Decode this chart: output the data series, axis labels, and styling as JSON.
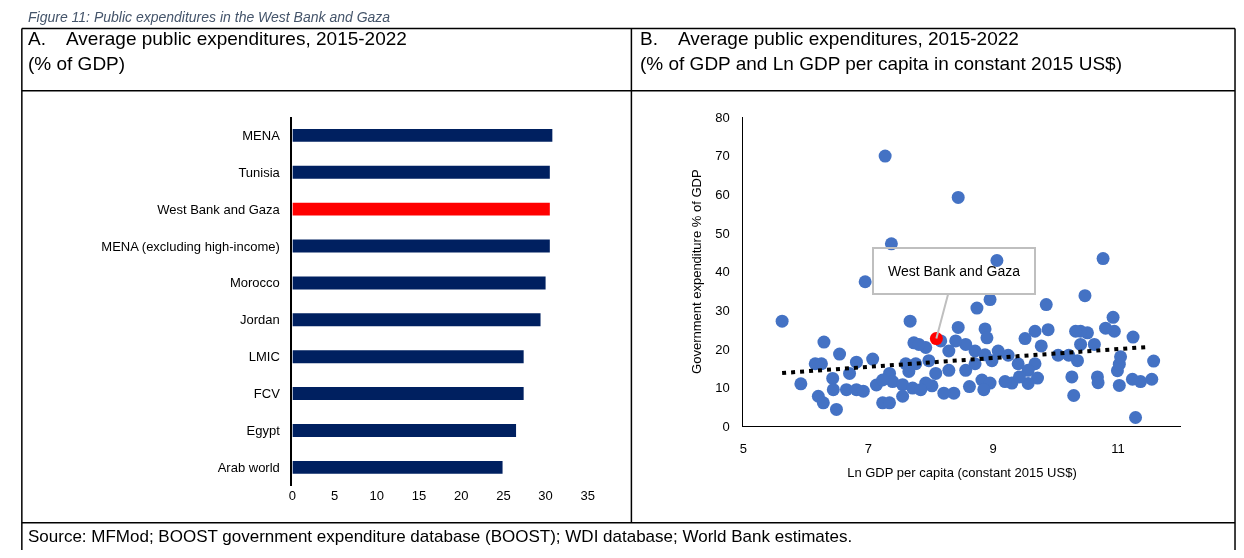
{
  "chart_data": [
    {
      "type": "bar",
      "orientation": "horizontal",
      "title": "A.    Average public expenditures, 2015-2022",
      "subtitle": "(% of GDP)",
      "annotations": [
        "Figure 11: Public expenditures in the West Bank and Gaza"
      ],
      "categories": [
        "MENA",
        "Tunisia",
        "West Bank and Gaza",
        "MENA (excluding high-income)",
        "Morocco",
        "Jordan",
        "LMIC",
        "FCV",
        "Egypt",
        "Arab world"
      ],
      "values": [
        30.8,
        30.5,
        30.5,
        30.5,
        30.0,
        29.4,
        27.4,
        27.4,
        26.5,
        24.9
      ],
      "colors": [
        "#002060",
        "#002060",
        "#ff0000",
        "#002060",
        "#002060",
        "#002060",
        "#002060",
        "#002060",
        "#002060",
        "#002060"
      ],
      "xlim": [
        0,
        35
      ],
      "xticks": [
        0,
        5,
        10,
        15,
        20,
        25,
        30,
        35
      ]
    },
    {
      "type": "scatter",
      "title": "B.    Average public expenditures, 2015-2022",
      "subtitle": "(% of GDP and Ln GDP per capita in constant 2015 US$)",
      "xlabel": "Ln GDP per capita (constant 2015 US$)",
      "ylabel": "Government expenditure % of GDP",
      "annotations": [
        {
          "text": "West Bank and Gaza",
          "x": 8.09,
          "y": 22.7
        },
        "Source: MFMod; BOOST government expenditure database (BOOST); WDI database; World Bank estimates."
      ],
      "marker": "circle",
      "series": [
        {
          "type": "scatter",
          "color": "#4472c4",
          "x": [
            5.62,
            7.27,
            7.37,
            6.95,
            7.67,
            6.29,
            5.92,
            6.15,
            6.25,
            6.54,
            6.43,
            6.2,
            6.28,
            6.49,
            6.44,
            6.65,
            6.81,
            6.92,
            7.07,
            6.81,
            6.7,
            7.13,
            7.23,
            7.34,
            7.34,
            7.39,
            7.23,
            7.55,
            7.55,
            7.71,
            7.6,
            7.65,
            7.76,
            7.73,
            7.92,
            8.02,
            8.44,
            9.06,
            10.76,
            8.95,
            8.74,
            9.85,
            10.47,
            8.44,
            8.87,
            8.9,
            10.92,
            11.24,
            11.57,
            11.54,
            11.36,
            11.23,
            11.28,
            10.29,
            10.26,
            10.67,
            10.68,
            11.02,
            10.99,
            11.02,
            11.04,
            10.94,
            10.8,
            10.51,
            10.4,
            10.32,
            10.62,
            10.4,
            10.35,
            10.21,
            10.04,
            9.88,
            9.67,
            9.51,
            9.77,
            9.67,
            9.56,
            9.71,
            9.56,
            9.3,
            9.19,
            9.4,
            9.08,
            8.98,
            8.87,
            8.71,
            8.56,
            8.4,
            8.29,
            8.29,
            8.56,
            8.71,
            8.82,
            8.95,
            8.85,
            8.62,
            8.37,
            8.21,
            8.08,
            7.92,
            7.84,
            7.97,
            7.81,
            8.16,
            9.24,
            9.42
          ],
          "values": [
            27.2,
            69.9,
            47.2,
            37.4,
            27.2,
            21.8,
            11.0,
            16.2,
            16.2,
            18.7,
            12.4,
            7.8,
            6.1,
            4.4,
            9.5,
            9.5,
            9.5,
            9.1,
            17.4,
            16.6,
            13.7,
            10.7,
            6.1,
            6.1,
            13.7,
            11.6,
            12.0,
            10.8,
            7.8,
            9.9,
            16.2,
            14.2,
            16.2,
            21.6,
            20.4,
            10.5,
            59.2,
            42.9,
            43.4,
            32.8,
            30.6,
            31.5,
            33.8,
            25.6,
            25.2,
            22.9,
            28.2,
            23.1,
            16.9,
            12.2,
            11.6,
            12.2,
            2.3,
            8.0,
            12.8,
            12.8,
            11.3,
            10.6,
            14.4,
            16.1,
            18.0,
            24.6,
            25.4,
            24.2,
            24.6,
            24.6,
            21.2,
            21.2,
            17.0,
            18.4,
            18.4,
            25.0,
            24.6,
            22.7,
            20.8,
            16.2,
            14.5,
            12.5,
            11.1,
            11.2,
            11.6,
            16.2,
            19.5,
            17.0,
            18.5,
            19.5,
            21.2,
            22.1,
            19.5,
            14.5,
            14.5,
            16.2,
            12.0,
            11.2,
            9.5,
            10.3,
            8.6,
            8.6,
            13.7,
            11.2,
            9.5,
            17.0,
            21.2,
            22.1,
            18.4,
            12.8
          ]
        },
        {
          "type": "scatter",
          "color": "#ff0000",
          "x": [
            8.09
          ],
          "values": [
            22.7
          ]
        },
        {
          "type": "line",
          "color": "#000000",
          "line_style": "dotted",
          "marker": "none",
          "x": [
            5.62,
            11.44
          ],
          "values": [
            13.8,
            20.5
          ]
        }
      ],
      "xlim": [
        5,
        12
      ],
      "ylim": [
        0,
        80
      ],
      "xticks": [
        5,
        7,
        9,
        11
      ],
      "yticks": [
        0,
        10,
        20,
        30,
        40,
        50,
        60,
        70,
        80
      ]
    }
  ]
}
